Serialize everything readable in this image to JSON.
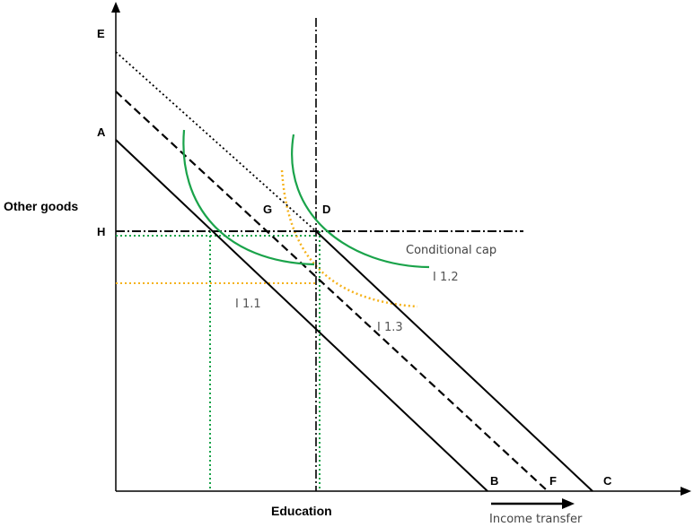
{
  "axes": {
    "y_label": "Other goods",
    "x_label": "Education",
    "transfer_label": "Income transfer"
  },
  "points": {
    "E": "E",
    "A": "A",
    "H": "H",
    "G": "G",
    "D": "D",
    "B": "B",
    "F": "F",
    "C": "C"
  },
  "curves": {
    "i11": "I 1.1",
    "i12": "I 1.2",
    "i13": "I 1.3",
    "cap": "Conditional cap"
  },
  "colors": {
    "line": "#000000",
    "indifference": "#1aa34a",
    "dotted_green": "#1aa34a",
    "orange": "#f5b21b"
  }
}
